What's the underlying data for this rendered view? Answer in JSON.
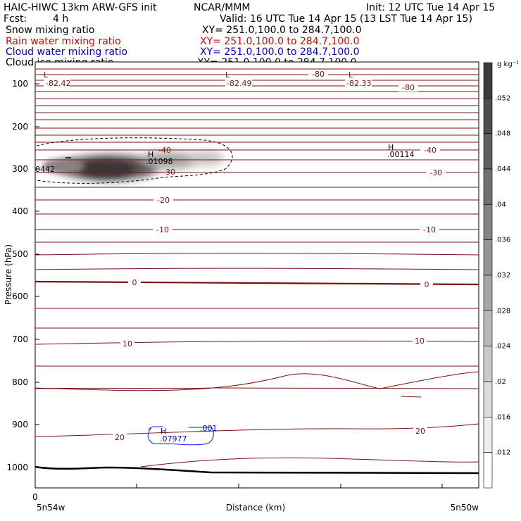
{
  "header": {
    "title_left": "HAIC-HIWC 13km ARW-GFS init",
    "title_center": "NCAR/MMM",
    "init": "Init: 12 UTC Tue 14 Apr 15",
    "fcst_label": "Fcst:",
    "fcst_value": "4 h",
    "valid": "Valid: 16 UTC Tue 14 Apr 15 (13 LST Tue 14 Apr 15)",
    "fields": [
      {
        "name": "Snow mixing ratio",
        "xy": "XY= 251.0,100.0 to 284.7,100.0",
        "color": "#000000"
      },
      {
        "name": "Rain water mixing ratio",
        "xy": "XY= 251.0,100.0 to 284.7,100.0",
        "color": "#e00000"
      },
      {
        "name": "Cloud water mixing ratio",
        "xy": "XY= 251.0,100.0 to 284.7,100.0",
        "color": "#0000cc"
      },
      {
        "name": "Cloud ice mixing ratio",
        "xy": "XY= 251.0,100.0 to 284.7,100.0",
        "color": "#000000"
      }
    ]
  },
  "chart_data": {
    "type": "heatmap",
    "ylabel": "Pressure (hPa)",
    "xlabel": "Distance (km)",
    "y_ticks": [
      100,
      200,
      300,
      400,
      500,
      600,
      700,
      800,
      900,
      1000
    ],
    "ylim": [
      1050,
      50
    ],
    "y_scale": "log",
    "x_tick_start": "0",
    "x_left_label": "5n54w",
    "x_right_label": "5n50w",
    "colorbar": {
      "unit": "g kg⁻¹",
      "labels": [
        ".052",
        ".048",
        ".044",
        ".04",
        ".036",
        ".032",
        ".028",
        ".024",
        ".02",
        ".016",
        ".012"
      ]
    },
    "temperature_contour_labels": [
      "-80",
      "-80",
      "-40",
      "-40",
      "-30",
      "-30",
      "-20",
      "-10",
      "-10",
      "0",
      "0",
      "10",
      "10",
      "20",
      "20"
    ],
    "extrema": {
      "lows": [
        {
          "mark": "L",
          "value": "-82.42"
        },
        {
          "mark": "L",
          "value": "-82.49"
        },
        {
          "mark": "L",
          "value": "-82.33"
        }
      ],
      "highs": [
        {
          "mark": "H",
          "value": ".01098"
        },
        {
          "mark": "H",
          "value": ".00114"
        }
      ],
      "edge_value": "0442",
      "cloud_water": {
        "mark": "H",
        "value": ".07977",
        "contour": ".001"
      }
    }
  }
}
